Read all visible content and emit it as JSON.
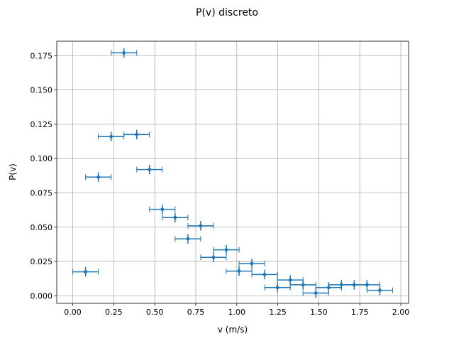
{
  "chart_data": {
    "type": "scatter",
    "title": "P(v) discreto",
    "xlabel": "v (m/s)",
    "ylabel": "P(v)",
    "xlim": [
      -0.0975,
      2.0475
    ],
    "ylim": [
      -0.0055,
      0.1855
    ],
    "xticks": [
      0.0,
      0.25,
      0.5,
      0.75,
      1.0,
      1.25,
      1.5,
      1.75,
      2.0
    ],
    "xtick_labels": [
      "0.00",
      "0.25",
      "0.50",
      "0.75",
      "1.00",
      "1.25",
      "1.50",
      "1.75",
      "2.00"
    ],
    "yticks": [
      0.0,
      0.025,
      0.05,
      0.075,
      0.1,
      0.125,
      0.15,
      0.175
    ],
    "ytick_labels": [
      "0.000",
      "0.025",
      "0.050",
      "0.075",
      "0.100",
      "0.125",
      "0.150",
      "0.175"
    ],
    "grid": true,
    "color": "#1f77b4",
    "xerr": 0.078,
    "yerr_scale": 0.004184,
    "series": [
      {
        "x": [
          0.078,
          0.156,
          0.234,
          0.312,
          0.39,
          0.468,
          0.546,
          0.624,
          0.702,
          0.78,
          0.858,
          0.936,
          1.014,
          1.092,
          1.17,
          1.248,
          1.326,
          1.404,
          1.482,
          1.56,
          1.638,
          1.716,
          1.794,
          1.872
        ],
        "y": [
          0.0175,
          0.0865,
          0.116,
          0.177,
          0.1175,
          0.092,
          0.063,
          0.057,
          0.0415,
          0.051,
          0.028,
          0.0335,
          0.018,
          0.0235,
          0.0155,
          0.006,
          0.0115,
          0.008,
          0.002,
          0.006,
          0.008,
          0.008,
          0.008,
          0.004
        ]
      }
    ]
  }
}
